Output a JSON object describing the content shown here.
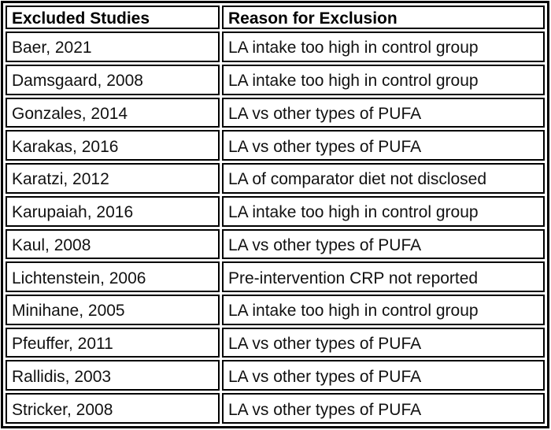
{
  "page": {
    "background": "#ffffff"
  },
  "colors": {
    "border": "#000000",
    "text": "#111111",
    "header_text": "#000000",
    "cell_background": "#ffffff"
  },
  "table": {
    "headers": [
      "Excluded Studies",
      "Reason for Exclusion"
    ],
    "rows": [
      [
        "Baer, 2021",
        "LA intake too high in control group"
      ],
      [
        "Damsgaard, 2008",
        "LA intake too high in control group"
      ],
      [
        "Gonzales, 2014",
        "LA vs other types of PUFA"
      ],
      [
        "Karakas, 2016",
        "LA vs other types of PUFA"
      ],
      [
        "Karatzi, 2012",
        "LA of comparator diet not disclosed"
      ],
      [
        "Karupaiah, 2016",
        "LA intake too high in control group"
      ],
      [
        "Kaul, 2008",
        "LA vs other types of PUFA"
      ],
      [
        "Lichtenstein, 2006",
        "Pre-intervention CRP not reported"
      ],
      [
        "Minihane, 2005",
        "LA intake too high in control group"
      ],
      [
        "Pfeuffer, 2011",
        "LA vs other types of PUFA"
      ],
      [
        "Rallidis, 2003",
        "LA vs other types of PUFA"
      ],
      [
        "Stricker, 2008",
        "LA vs other types of PUFA"
      ]
    ]
  }
}
